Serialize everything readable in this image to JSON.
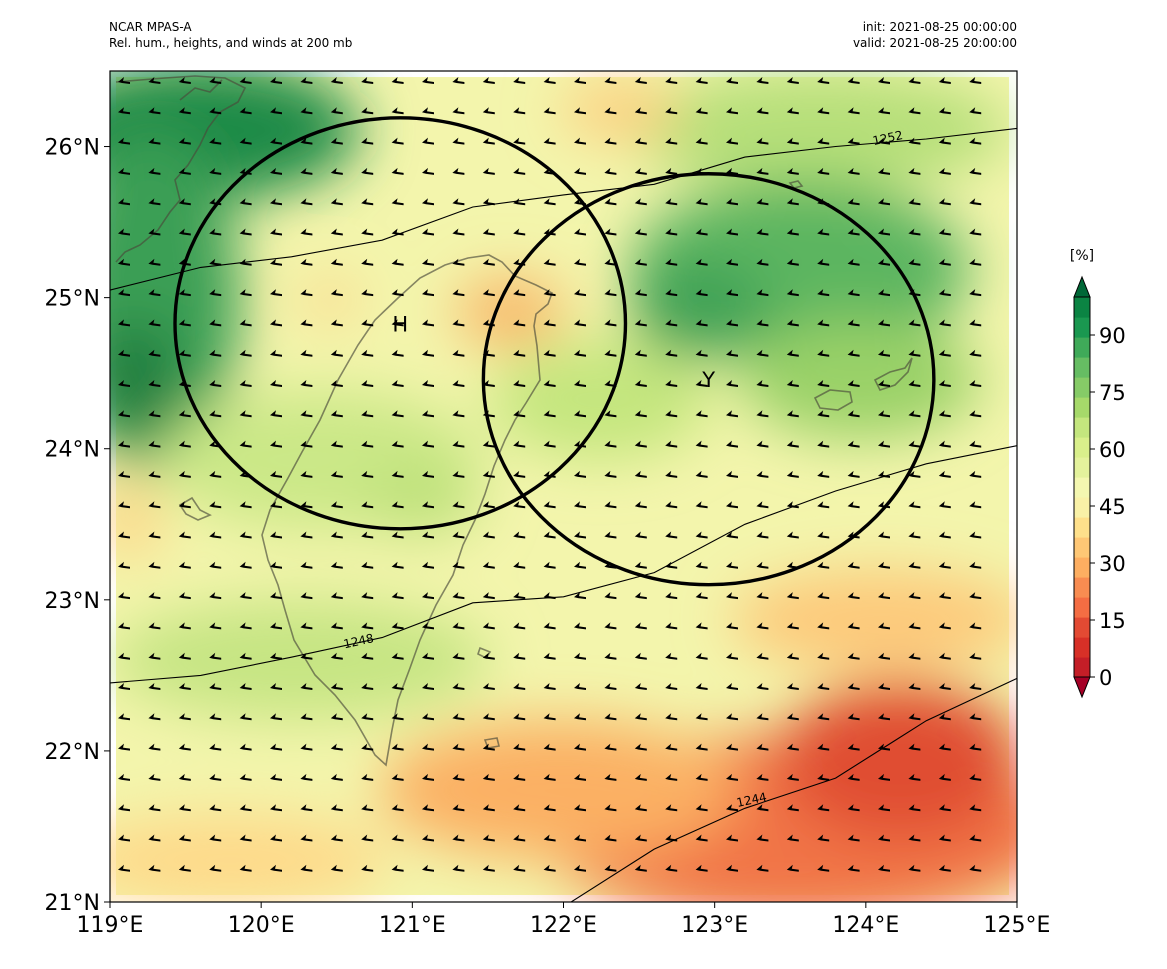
{
  "header": {
    "model": "NCAR MPAS-A",
    "product": "Rel. hum., heights, and winds at 200 mb",
    "init": "init: 2021-08-25 00:00:00",
    "valid": "valid: 2021-08-25 20:00:00"
  },
  "map": {
    "lon_range": [
      119,
      125
    ],
    "lat_range": [
      21,
      26.5
    ],
    "lon_ticks": [
      {
        "value": 119,
        "label": "119°E"
      },
      {
        "value": 120,
        "label": "120°E"
      },
      {
        "value": 121,
        "label": "121°E"
      },
      {
        "value": 122,
        "label": "122°E"
      },
      {
        "value": 123,
        "label": "123°E"
      },
      {
        "value": 124,
        "label": "124°E"
      },
      {
        "value": 125,
        "label": "125°E"
      }
    ],
    "lat_ticks": [
      {
        "value": 21,
        "label": "21°N"
      },
      {
        "value": 22,
        "label": "22°N"
      },
      {
        "value": 23,
        "label": "23°N"
      },
      {
        "value": 24,
        "label": "24°N"
      },
      {
        "value": 25,
        "label": "25°N"
      },
      {
        "value": 26,
        "label": "26°N"
      }
    ],
    "height_contours": [
      {
        "label": "1252",
        "label_lon": 124.15,
        "label_lat": 26.03,
        "path": [
          [
            119,
            25.05
          ],
          [
            119.6,
            25.2
          ],
          [
            120.2,
            25.27
          ],
          [
            120.8,
            25.38
          ],
          [
            121.4,
            25.6
          ],
          [
            122,
            25.68
          ],
          [
            122.6,
            25.75
          ],
          [
            123.2,
            25.93
          ],
          [
            123.8,
            26.0
          ],
          [
            124.4,
            26.05
          ],
          [
            125,
            26.12
          ]
        ]
      },
      {
        "label": "1248",
        "label_lon": 120.65,
        "label_lat": 22.7,
        "path": [
          [
            119,
            22.45
          ],
          [
            119.6,
            22.5
          ],
          [
            120.2,
            22.62
          ],
          [
            120.8,
            22.75
          ],
          [
            121.4,
            22.98
          ],
          [
            122,
            23.02
          ],
          [
            122.6,
            23.18
          ],
          [
            123.2,
            23.5
          ],
          [
            123.8,
            23.72
          ],
          [
            124.4,
            23.9
          ],
          [
            125,
            24.02
          ]
        ]
      },
      {
        "label": "1244",
        "label_lon": 123.25,
        "label_lat": 21.65,
        "path": [
          [
            122.05,
            21.0
          ],
          [
            122.6,
            21.35
          ],
          [
            123.2,
            21.62
          ],
          [
            123.8,
            21.82
          ],
          [
            124.4,
            22.2
          ],
          [
            125,
            22.48
          ]
        ]
      }
    ],
    "circles": [
      {
        "label": "H",
        "center_lon": 120.92,
        "center_lat": 24.83,
        "radius_lon": 1.49,
        "radius_lat": 1.36
      },
      {
        "label": "Y",
        "center_lon": 122.96,
        "center_lat": 24.46,
        "radius_lon": 1.49,
        "radius_lat": 1.36
      }
    ],
    "colorbar": {
      "unit": "[%]",
      "range": [
        0,
        100
      ],
      "ticks": [
        {
          "value": 0,
          "label": "0"
        },
        {
          "value": 15,
          "label": "15"
        },
        {
          "value": 30,
          "label": "30"
        },
        {
          "value": 45,
          "label": "45"
        },
        {
          "value": 60,
          "label": "60"
        },
        {
          "value": 75,
          "label": "75"
        },
        {
          "value": 90,
          "label": "90"
        }
      ],
      "colors": [
        "#a50026",
        "#c41e27",
        "#d73027",
        "#e34a33",
        "#f46d43",
        "#f88c51",
        "#fdae61",
        "#fec775",
        "#fee08b",
        "#f9f1a7",
        "#f4f7b0",
        "#e4f29c",
        "#d9ef8b",
        "#c4e67e",
        "#a6d96a",
        "#86cb67",
        "#66bd63",
        "#3faa59",
        "#1a9850",
        "#0b8443",
        "#006837"
      ]
    }
  }
}
